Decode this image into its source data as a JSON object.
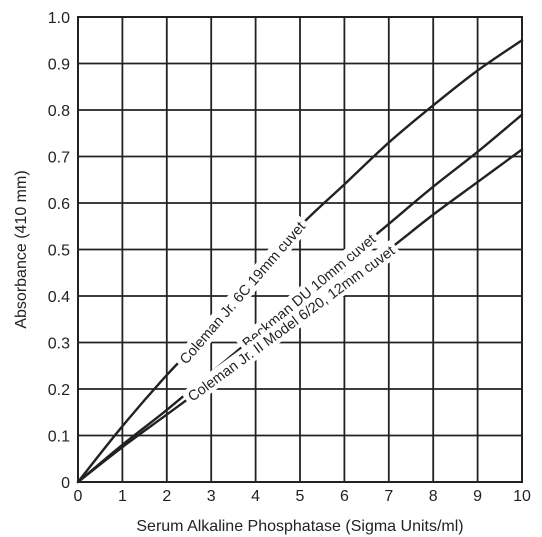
{
  "chart_data": {
    "type": "line",
    "title": "",
    "xlabel": "Serum Alkaline Phosphatase (Sigma Units/ml)",
    "ylabel": "Absorbance (410 mm)",
    "xlim": [
      0,
      10
    ],
    "ylim": [
      0,
      1.0
    ],
    "x_ticks": [
      "0",
      "1",
      "2",
      "3",
      "4",
      "5",
      "6",
      "7",
      "8",
      "9",
      "10"
    ],
    "y_ticks": [
      "0",
      "0.1",
      "0.2",
      "0.3",
      "0.4",
      "0.5",
      "0.6",
      "0.7",
      "0.8",
      "0.9",
      "1.0"
    ],
    "grid": true,
    "legend": "none",
    "series": [
      {
        "name": "Coleman Jr. 6C 19mm cuvet",
        "x": [
          0,
          1,
          2,
          3,
          4,
          5,
          6,
          7,
          8,
          9,
          10
        ],
        "y": [
          0,
          0.12,
          0.23,
          0.33,
          0.44,
          0.55,
          0.64,
          0.73,
          0.81,
          0.885,
          0.95
        ]
      },
      {
        "name": "Beckman DU 10mm cuvet",
        "x": [
          0,
          1,
          2,
          3,
          4,
          5,
          6,
          7,
          8,
          9,
          10
        ],
        "y": [
          0,
          0.08,
          0.155,
          0.235,
          0.315,
          0.395,
          0.475,
          0.555,
          0.635,
          0.71,
          0.79
        ]
      },
      {
        "name": "Coleman Jr. II Model 6/20, 12mm cuvet",
        "x": [
          0,
          1,
          2,
          3,
          4,
          5,
          6,
          7,
          8,
          9,
          10
        ],
        "y": [
          0,
          0.075,
          0.145,
          0.215,
          0.285,
          0.355,
          0.43,
          0.5,
          0.575,
          0.645,
          0.715
        ]
      }
    ]
  }
}
